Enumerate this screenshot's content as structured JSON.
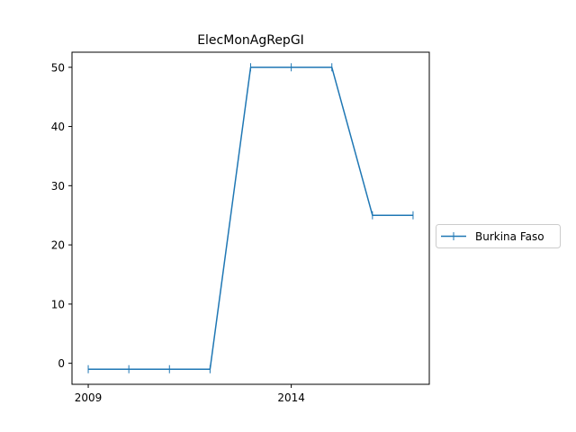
{
  "chart_data": {
    "type": "line",
    "title": "ElecMonAgRepGI",
    "xlabel": "",
    "ylabel": "",
    "x": [
      2009,
      2010,
      2011,
      2012,
      2013,
      2014,
      2015,
      2016,
      2017
    ],
    "xticks": [
      2009,
      2014
    ],
    "yticks": [
      0,
      10,
      20,
      30,
      40,
      50
    ],
    "xlim": [
      2008.6,
      2017.4
    ],
    "ylim": [
      -3.55,
      52.55
    ],
    "grid": false,
    "legend_position": "outside-right",
    "series": [
      {
        "name": "Burkina Faso",
        "color": "#1f77b4",
        "marker": "vertical-tick",
        "values": [
          -1,
          -1,
          -1,
          -1,
          50,
          50,
          50,
          25,
          25
        ]
      }
    ]
  }
}
